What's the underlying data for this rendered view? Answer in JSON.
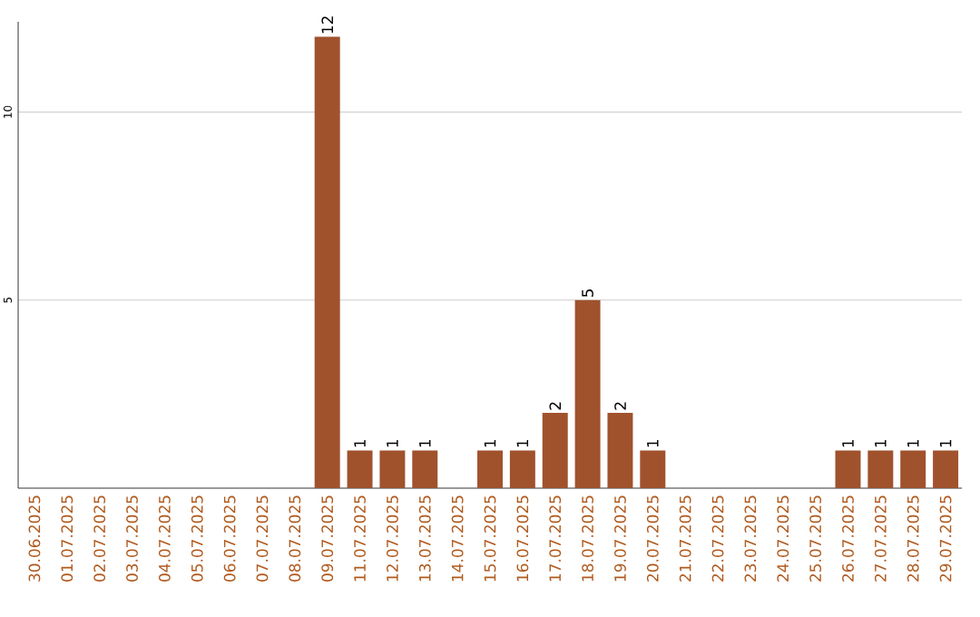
{
  "chart_data": {
    "type": "bar",
    "categories": [
      "30.06.2025",
      "01.07.2025",
      "02.07.2025",
      "03.07.2025",
      "04.07.2025",
      "05.07.2025",
      "06.07.2025",
      "07.07.2025",
      "08.07.2025",
      "09.07.2025",
      "11.07.2025",
      "12.07.2025",
      "13.07.2025",
      "14.07.2025",
      "15.07.2025",
      "16.07.2025",
      "17.07.2025",
      "18.07.2025",
      "19.07.2025",
      "20.07.2025",
      "21.07.2025",
      "22.07.2025",
      "23.07.2025",
      "24.07.2025",
      "25.07.2025",
      "26.07.2025",
      "27.07.2025",
      "28.07.2025",
      "29.07.2025"
    ],
    "values": [
      0,
      0,
      0,
      0,
      0,
      0,
      0,
      0,
      0,
      12,
      1,
      1,
      1,
      0,
      1,
      1,
      2,
      5,
      2,
      1,
      0,
      0,
      0,
      0,
      0,
      1,
      1,
      1,
      1
    ],
    "value_labels": [
      null,
      null,
      null,
      null,
      null,
      null,
      null,
      null,
      null,
      "12",
      "1",
      "1",
      "1",
      null,
      "1",
      "1",
      "2",
      "5",
      "2",
      "1",
      null,
      null,
      null,
      null,
      null,
      "1",
      "1",
      "1",
      "1"
    ],
    "color": "#a0522d",
    "ylim": [
      0,
      12.4
    ],
    "yticks": [
      5,
      10
    ],
    "grid": "y"
  }
}
